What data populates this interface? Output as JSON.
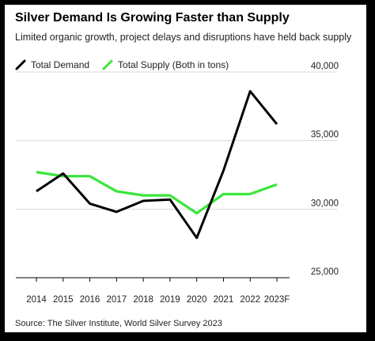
{
  "title": "Silver Demand Is Growing Faster than Supply",
  "subtitle": "Limited organic growth, project delays and disruptions have held back supply",
  "source": "Source: The Silver Institute, World Silver Survey 2023",
  "colors": {
    "demand": "#000000",
    "supply": "#39e639",
    "grid": "#d9d9d9",
    "frame": "#000000"
  },
  "chart_data": {
    "type": "line",
    "title": "Silver Demand Is Growing Faster than Supply",
    "subtitle": "Limited organic growth, project delays and disruptions have held back supply",
    "categories": [
      "2014",
      "2015",
      "2016",
      "2017",
      "2018",
      "2019",
      "2020",
      "2021",
      "2022",
      "2023F"
    ],
    "series": [
      {
        "name": "Total Demand",
        "color": "#000000",
        "values": [
          31300,
          32600,
          30400,
          29800,
          30600,
          30700,
          27900,
          32800,
          38600,
          36200
        ]
      },
      {
        "name": "Total Supply (Both in tons)",
        "color": "#39e639",
        "values": [
          32700,
          32400,
          32400,
          31300,
          31000,
          31000,
          29700,
          31100,
          31100,
          31800
        ]
      }
    ],
    "ylim": [
      25000,
      40000
    ],
    "yticks": [
      "25,000",
      "30,000",
      "35,000",
      "40,000"
    ],
    "ytick_values": [
      25000,
      30000,
      35000,
      40000
    ],
    "y_axis_position": "right",
    "grid": true,
    "legend": "top-left"
  }
}
